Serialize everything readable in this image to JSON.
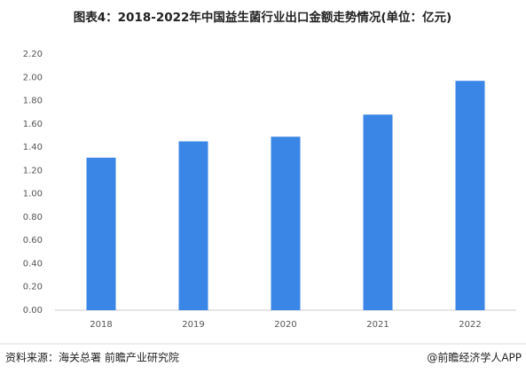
{
  "chart_data": {
    "type": "bar",
    "title": "图表4：2018-2022年中国益生菌行业出口金额走势情况(单位：亿元)",
    "categories": [
      "2018",
      "2019",
      "2020",
      "2021",
      "2022"
    ],
    "values": [
      1.31,
      1.45,
      1.49,
      1.68,
      1.97
    ],
    "color": "#3a86e6",
    "ylim": [
      0,
      2.2
    ],
    "yticks": [
      {
        "value": 0,
        "label": "0.00"
      },
      {
        "value": 0.2,
        "label": "0.20"
      },
      {
        "value": 0.4,
        "label": "0.40"
      },
      {
        "value": 0.6,
        "label": "0.60"
      },
      {
        "value": 0.8,
        "label": "0.80"
      },
      {
        "value": 1.0,
        "label": "1.00"
      },
      {
        "value": 1.2,
        "label": "1.20"
      },
      {
        "value": 1.4,
        "label": "1.40"
      },
      {
        "value": 1.6,
        "label": "1.60"
      },
      {
        "value": 1.8,
        "label": "1.80"
      },
      {
        "value": 2.0,
        "label": "2.00"
      },
      {
        "value": 2.2,
        "label": "2.20"
      }
    ],
    "source": "资料来源：海关总署 前瞻产业研究院",
    "credit": "@前瞻经济学人APP"
  }
}
